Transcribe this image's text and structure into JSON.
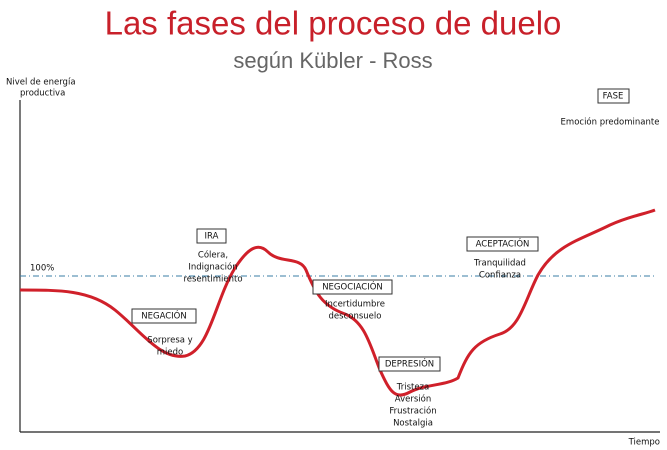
{
  "header": {
    "title": "Las fases del proceso de duelo",
    "subtitle": "según Kübler - Ross"
  },
  "axes": {
    "y_label": [
      "Nivel de energía",
      "productiva"
    ],
    "x_label": "Tiempo",
    "reference": "100%"
  },
  "key": {
    "phase": "FASE",
    "emotion": "Emoción predominante"
  },
  "phases": [
    {
      "name": "NEGACIÓN",
      "emotions": [
        "Sorpresa y",
        "miedo"
      ]
    },
    {
      "name": "IRA",
      "emotions": [
        "Cólera,",
        "Indignación",
        "resentimiento"
      ]
    },
    {
      "name": "NEGOCIACIÓN",
      "emotions": [
        "Incertidumbre",
        "desconsuelo"
      ]
    },
    {
      "name": "DEPRESIÓN",
      "emotions": [
        "Tristeza",
        "Aversión",
        "Frustración",
        "Nostalgia"
      ]
    },
    {
      "name": "ACEPTACIÓN",
      "emotions": [
        "Tranquilidad",
        "Confianza"
      ]
    }
  ]
}
